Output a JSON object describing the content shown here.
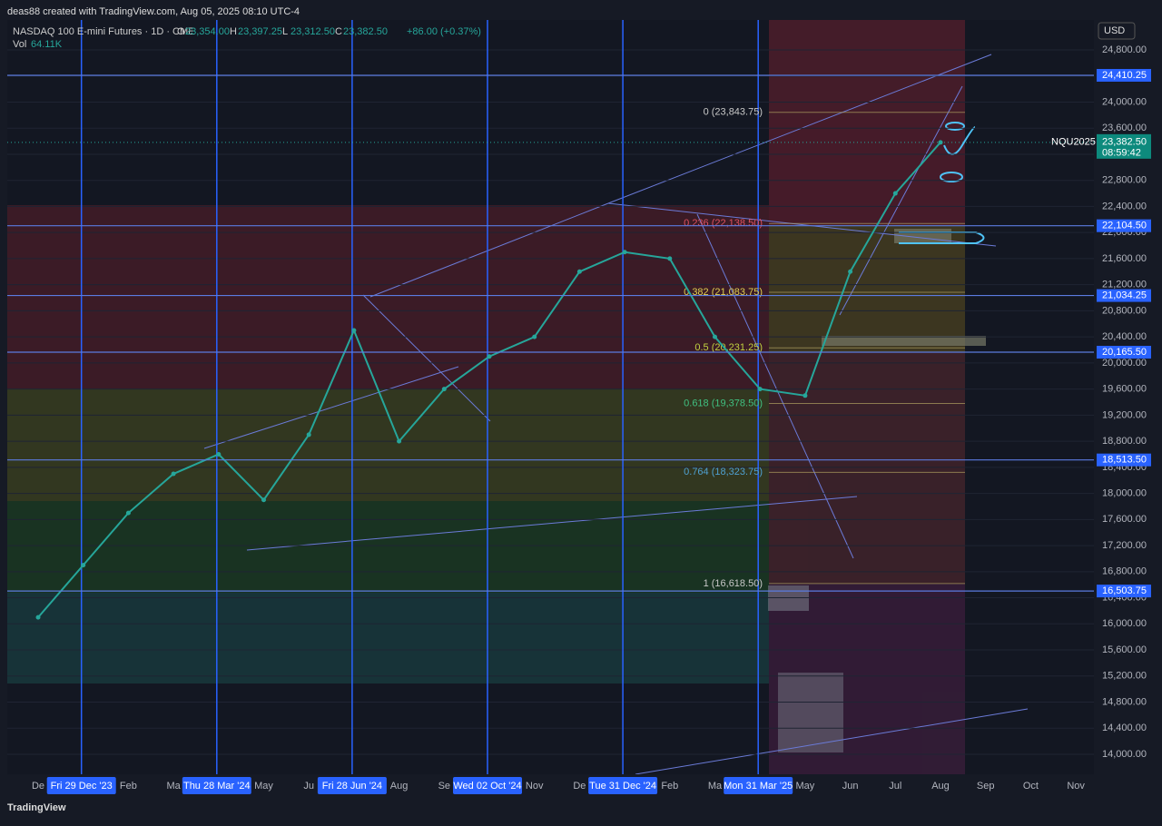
{
  "header": {
    "credit": "deas88 created with TradingView.com, Aug 05, 2025 08:10 UTC-4"
  },
  "footer": {
    "brand": "TradingView"
  },
  "chart_data": {
    "type": "line",
    "title": "NASDAQ 100 E-mini Futures · 1D · CME",
    "ohlc": {
      "names": [
        "O",
        "H",
        "L",
        "C"
      ],
      "values": [
        {
          "value": 23354,
          "label": "23,354.00"
        },
        {
          "value": 23397.25,
          "label": "23,397.25"
        },
        {
          "value": 23312.5,
          "label": "23,312.50"
        },
        {
          "value": 23382.5,
          "label": "23,382.50"
        }
      ]
    },
    "change": "+86.00 (+0.37%)",
    "volume": {
      "name": "Vol",
      "value": {
        "value": 64110,
        "label": "64.11K"
      }
    },
    "currency": "USD",
    "symbol": "NQU2025",
    "last_price": {
      "value": 23382.5,
      "label": "23,382.50"
    },
    "countdown": "08:59:42",
    "ylim": [
      13694,
      25259
    ],
    "yticks": [
      {
        "value": 14000,
        "label": "14,000.00"
      },
      {
        "value": 14400,
        "label": "14,400.00"
      },
      {
        "value": 14800,
        "label": "14,800.00"
      },
      {
        "value": 15200,
        "label": "15,200.00"
      },
      {
        "value": 15600,
        "label": "15,600.00"
      },
      {
        "value": 16000,
        "label": "16,000.00"
      },
      {
        "value": 16400,
        "label": "16,400.00"
      },
      {
        "value": 16800,
        "label": "16,800.00"
      },
      {
        "value": 17200,
        "label": "17,200.00"
      },
      {
        "value": 17600,
        "label": "17,600.00"
      },
      {
        "value": 18000,
        "label": "18,000.00"
      },
      {
        "value": 18400,
        "label": "18,400.00"
      },
      {
        "value": 18800,
        "label": "18,800.00"
      },
      {
        "value": 19200,
        "label": "19,200.00"
      },
      {
        "value": 19600,
        "label": "19,600.00"
      },
      {
        "value": 20000,
        "label": "20,000.00"
      },
      {
        "value": 20400,
        "label": "20,400.00"
      },
      {
        "value": 20800,
        "label": "20,800.00"
      },
      {
        "value": 21200,
        "label": "21,200.00"
      },
      {
        "value": 21600,
        "label": "21,600.00"
      },
      {
        "value": 22000,
        "label": "22,000.00"
      },
      {
        "value": 22400,
        "label": "22,400.00"
      },
      {
        "value": 22800,
        "label": "22,800.00"
      },
      {
        "value": 23200,
        "label": "23,200.00"
      },
      {
        "value": 23600,
        "label": "23,600.00"
      },
      {
        "value": 24000,
        "label": "24,000.00"
      },
      {
        "value": 24400,
        "label": "24,400.00"
      },
      {
        "value": 24800,
        "label": "24,800.00"
      }
    ],
    "price_lines": [
      {
        "value": 24410.25,
        "label": "24,410.25"
      },
      {
        "value": 22104.5,
        "label": "22,104.50"
      },
      {
        "value": 21034.25,
        "label": "21,034.25"
      },
      {
        "value": 20165.5,
        "label": "20,165.50"
      },
      {
        "value": 18513.5,
        "label": "18,513.50"
      },
      {
        "value": 16503.75,
        "label": "16,503.75"
      }
    ],
    "fib_levels": [
      {
        "value": 23843.75,
        "label": "0 (23,843.75)"
      },
      {
        "value": 22138.5,
        "label": "0.236 (22,138.50)"
      },
      {
        "value": 21083.75,
        "label": "0.382 (21,083.75)"
      },
      {
        "value": 20231.25,
        "label": "0.5 (20,231.25)"
      },
      {
        "value": 19378.5,
        "label": "0.618 (19,378.50)"
      },
      {
        "value": 18323.75,
        "label": "0.764 (18,323.75)"
      },
      {
        "value": 16618.5,
        "label": "1 (16,618.50)"
      }
    ],
    "categories": [
      "De",
      null,
      "Feb",
      "Ma",
      null,
      "May",
      "Ju",
      null,
      "Aug",
      "Se",
      null,
      "Nov",
      "De",
      null,
      "Feb",
      "Ma",
      null,
      "May",
      "Jun",
      "Jul",
      "Aug",
      "Sep",
      "Oct",
      "Nov"
    ],
    "date_badges": [
      {
        "index": 1,
        "label": "Fri 29 Dec '23"
      },
      {
        "index": 4,
        "label": "Thu 28 Mar '24"
      },
      {
        "index": 7,
        "label": "Fri 28 Jun '24"
      },
      {
        "index": 10,
        "label": "Wed 02 Oct '24"
      },
      {
        "index": 13,
        "label": "Tue 31 Dec '24"
      },
      {
        "index": 16,
        "label": "Mon 31 Mar '25"
      }
    ],
    "series": [
      {
        "name": "NQU2025",
        "color": "#26a69a",
        "values": [
          16100,
          16900,
          17700,
          18300,
          18600,
          17900,
          18900,
          20500,
          18800,
          19600,
          20100,
          20400,
          21400,
          21700,
          21600,
          20400,
          19600,
          19500,
          21400,
          22600,
          23382.5,
          null,
          null,
          null
        ]
      }
    ]
  }
}
